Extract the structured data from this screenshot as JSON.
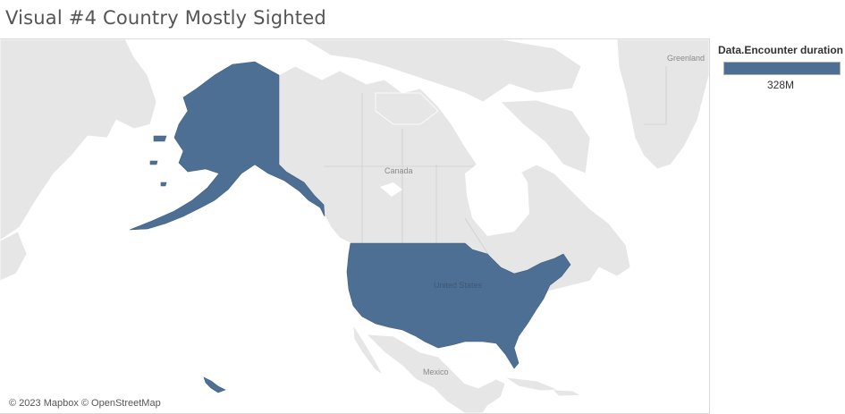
{
  "title": "Visual #4 Country Mostly Sighted",
  "map": {
    "labels": {
      "greenland": "Greenland",
      "canada": "Canada",
      "united_states": "United States",
      "mexico": "Mexico"
    },
    "highlighted_country": "United States",
    "highlight_color": "#4e6f94",
    "land_color": "#e6e6e6",
    "attribution": "© 2023 Mapbox © OpenStreetMap"
  },
  "legend": {
    "title": "Data.Encounter duration",
    "value": "328M",
    "color": "#4e6f94"
  }
}
